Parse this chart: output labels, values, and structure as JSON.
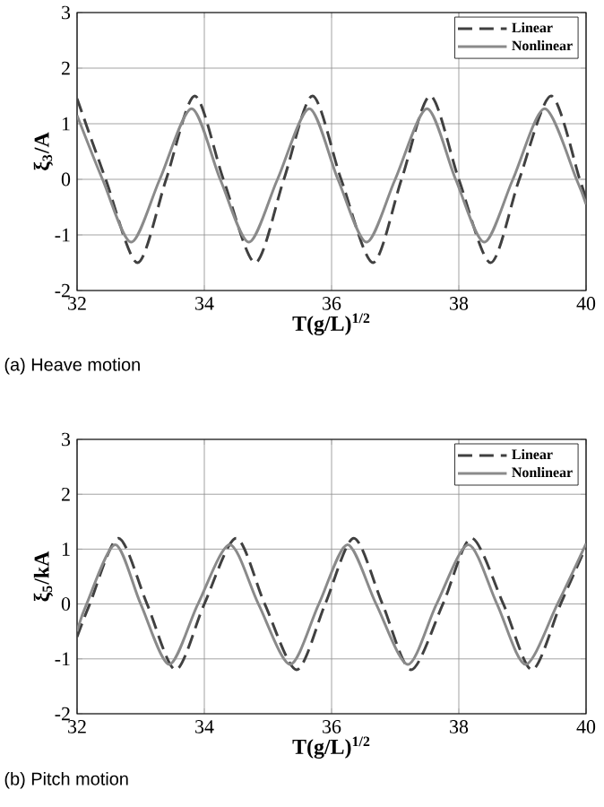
{
  "chart_data": [
    {
      "type": "line",
      "xlabel": "T(g/L)$^{1/2}$",
      "ylabel": "ξ$_{3}$/A",
      "xlim": [
        32,
        40
      ],
      "ylim": [
        -2,
        3
      ],
      "xticks": [
        32,
        34,
        36,
        38,
        40
      ],
      "yticks": [
        -2,
        -1,
        0,
        1,
        2,
        3
      ],
      "grid": true,
      "legend": "top right",
      "marker": "none",
      "annotations": [
        "(a)  Heave motion"
      ],
      "series": [
        {
          "name": "Linear",
          "color": "#404040",
          "line_style": "dashed",
          "x": [
            32,
            32.45,
            32.95,
            33.4,
            33.85,
            34.3,
            34.8,
            35.25,
            35.7,
            36.15,
            36.65,
            37.1,
            37.55,
            38.0,
            38.5,
            38.95,
            39.45,
            39.9,
            40
          ],
          "values": [
            1.45,
            0,
            -1.5,
            0,
            1.5,
            0,
            -1.5,
            0,
            1.5,
            0,
            -1.5,
            0,
            1.5,
            0,
            -1.5,
            0,
            1.5,
            0,
            -0.35
          ]
        },
        {
          "name": "Nonlinear",
          "color": "#8a8a8a",
          "line_style": "solid",
          "x": [
            32,
            32.4,
            32.85,
            33.3,
            33.8,
            34.25,
            34.7,
            35.15,
            35.65,
            36.1,
            36.55,
            37.0,
            37.5,
            37.95,
            38.4,
            38.85,
            39.35,
            39.85,
            40
          ],
          "values": [
            1.15,
            0,
            -1.13,
            0,
            1.27,
            0,
            -1.13,
            0,
            1.27,
            0,
            -1.13,
            0,
            1.27,
            0,
            -1.13,
            0,
            1.27,
            0,
            -0.45
          ]
        }
      ]
    },
    {
      "type": "line",
      "xlabel": "T(g/L)$^{1/2}$",
      "ylabel": "ξ$_{5}$/kA",
      "xlim": [
        32,
        40
      ],
      "ylim": [
        -2,
        3
      ],
      "xticks": [
        32,
        34,
        36,
        38,
        40
      ],
      "yticks": [
        -2,
        -1,
        0,
        1,
        2,
        3
      ],
      "grid": true,
      "legend": "top right",
      "marker": "none",
      "annotations": [
        "(b)  Pitch motion"
      ],
      "series": [
        {
          "name": "Linear",
          "color": "#404040",
          "line_style": "dashed",
          "x": [
            32,
            32.2,
            32.65,
            33.1,
            33.55,
            34.0,
            34.5,
            34.95,
            35.45,
            35.9,
            36.35,
            36.8,
            37.25,
            37.75,
            38.2,
            38.7,
            39.15,
            39.6,
            40
          ],
          "values": [
            -0.6,
            0,
            1.2,
            0,
            -1.2,
            0,
            1.2,
            0,
            -1.2,
            0,
            1.2,
            0,
            -1.2,
            0,
            1.2,
            0,
            -1.2,
            0,
            1.05
          ]
        },
        {
          "name": "Nonlinear",
          "color": "#8a8a8a",
          "line_style": "solid",
          "x": [
            32,
            32.15,
            32.6,
            33.0,
            33.45,
            33.9,
            34.4,
            34.85,
            35.35,
            35.8,
            36.25,
            36.7,
            37.2,
            37.65,
            38.15,
            38.6,
            39.05,
            39.55,
            40
          ],
          "values": [
            -0.5,
            0,
            1.08,
            0,
            -1.1,
            0,
            1.08,
            0,
            -1.1,
            0,
            1.08,
            0,
            -1.1,
            0,
            1.08,
            0,
            -1.1,
            0,
            1.1
          ]
        }
      ]
    }
  ]
}
